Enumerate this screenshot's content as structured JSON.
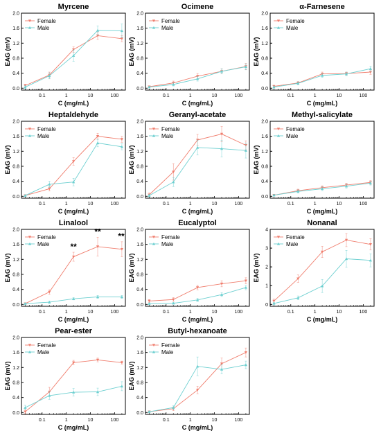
{
  "colors": {
    "female": "#f07e6e",
    "male": "#6ccfd0",
    "axis": "#000000"
  },
  "chart_data": [
    {
      "type": "line",
      "title": "Myrcene",
      "xlabel": "C (mg/mL)",
      "ylabel": "EAG (mV)",
      "xscale": "log",
      "ylim": [
        -0.05,
        2.0
      ],
      "y_ticks": [
        "0.0",
        "0.4",
        "0.8",
        "1.2",
        "1.6",
        "2.0"
      ],
      "legend": "top-left",
      "x": [
        0.02,
        0.2,
        2,
        20,
        200
      ],
      "series": [
        {
          "name": "Female",
          "marker": "down-triangle",
          "values": [
            0.07,
            0.35,
            1.03,
            1.4,
            1.32
          ],
          "errors": [
            0.04,
            0.08,
            0.07,
            0.1,
            0.08
          ]
        },
        {
          "name": "Male",
          "marker": "up-triangle",
          "values": [
            0.03,
            0.33,
            0.87,
            1.54,
            1.53
          ],
          "errors": [
            0.04,
            0.08,
            0.15,
            0.12,
            0.18
          ]
        }
      ]
    },
    {
      "type": "line",
      "title": "Ocimene",
      "xlabel": "C (mg/mL)",
      "ylabel": "EAG (mV)",
      "xscale": "log",
      "ylim": [
        -0.05,
        2.0
      ],
      "y_ticks": [
        "0.0",
        "0.4",
        "0.8",
        "1.2",
        "1.6",
        "2.0"
      ],
      "legend": "top-left",
      "x": [
        0.02,
        0.2,
        2,
        20,
        200
      ],
      "series": [
        {
          "name": "Female",
          "marker": "down-triangle",
          "values": [
            0.04,
            0.14,
            0.32,
            0.45,
            0.58
          ],
          "errors": [
            0.02,
            0.05,
            0.07,
            0.07,
            0.08
          ]
        },
        {
          "name": "Male",
          "marker": "up-triangle",
          "values": [
            0.03,
            0.1,
            0.25,
            0.45,
            0.57
          ],
          "errors": [
            0.02,
            0.04,
            0.06,
            0.07,
            0.08
          ]
        }
      ]
    },
    {
      "type": "line",
      "title": "α-Farnesene",
      "xlabel": "C (mg/mL)",
      "ylabel": "EAG (mV)",
      "xscale": "log",
      "ylim": [
        -0.05,
        2.0
      ],
      "y_ticks": [
        "0.0",
        "0.4",
        "0.8",
        "1.2",
        "1.6",
        "2.0"
      ],
      "legend": "top-left",
      "x": [
        0.02,
        0.2,
        2,
        20,
        200
      ],
      "series": [
        {
          "name": "Female",
          "marker": "down-triangle",
          "values": [
            0.05,
            0.14,
            0.38,
            0.39,
            0.43
          ],
          "errors": [
            0.03,
            0.04,
            0.05,
            0.04,
            0.06
          ]
        },
        {
          "name": "Male",
          "marker": "up-triangle",
          "values": [
            0.03,
            0.13,
            0.34,
            0.38,
            0.52
          ],
          "errors": [
            0.03,
            0.04,
            0.05,
            0.05,
            0.07
          ]
        }
      ]
    },
    {
      "type": "line",
      "title": "Heptaldehyde",
      "xlabel": "C (mg/mL)",
      "ylabel": "EAG (mV)",
      "xscale": "log",
      "ylim": [
        -0.05,
        2.0
      ],
      "y_ticks": [
        "0.0",
        "0.4",
        "0.8",
        "1.2",
        "1.6",
        "2.0"
      ],
      "legend": "top-left",
      "x": [
        0.02,
        0.2,
        2,
        20,
        200
      ],
      "series": [
        {
          "name": "Female",
          "marker": "down-triangle",
          "values": [
            0.02,
            0.2,
            0.93,
            1.6,
            1.52
          ],
          "errors": [
            0.02,
            0.06,
            0.1,
            0.08,
            0.08
          ]
        },
        {
          "name": "Male",
          "marker": "up-triangle",
          "values": [
            0.02,
            0.32,
            0.38,
            1.42,
            1.32
          ],
          "errors": [
            0.02,
            0.08,
            0.1,
            0.1,
            0.08
          ]
        }
      ]
    },
    {
      "type": "line",
      "title": "Geranyl-acetate",
      "xlabel": "C (mg/mL)",
      "ylabel": "EAG (mV)",
      "xscale": "log",
      "ylim": [
        -0.05,
        2.0
      ],
      "y_ticks": [
        "0.0",
        "0.4",
        "0.8",
        "1.2",
        "1.6",
        "2.0"
      ],
      "legend": "top-left",
      "x": [
        0.02,
        0.2,
        2,
        20,
        200
      ],
      "series": [
        {
          "name": "Female",
          "marker": "down-triangle",
          "values": [
            0.04,
            0.65,
            1.5,
            1.66,
            1.36
          ],
          "errors": [
            0.05,
            0.22,
            0.15,
            0.2,
            0.12
          ]
        },
        {
          "name": "Male",
          "marker": "up-triangle",
          "values": [
            0.02,
            0.38,
            1.3,
            1.27,
            1.22
          ],
          "errors": [
            0.03,
            0.12,
            0.2,
            0.22,
            0.2
          ]
        }
      ]
    },
    {
      "type": "line",
      "title": "Methyl-salicylate",
      "xlabel": "C (mg/mL)",
      "ylabel": "EAG (mV)",
      "xscale": "log",
      "ylim": [
        -0.05,
        2.0
      ],
      "y_ticks": [
        "0.0",
        "0.4",
        "0.8",
        "1.2",
        "1.6",
        "2.0"
      ],
      "legend": "top-left",
      "x": [
        0.02,
        0.2,
        2,
        20,
        200
      ],
      "series": [
        {
          "name": "Female",
          "marker": "down-triangle",
          "values": [
            0.03,
            0.15,
            0.23,
            0.3,
            0.37
          ],
          "errors": [
            0.02,
            0.04,
            0.05,
            0.05,
            0.05
          ]
        },
        {
          "name": "Male",
          "marker": "up-triangle",
          "values": [
            0.03,
            0.13,
            0.2,
            0.27,
            0.35
          ],
          "errors": [
            0.02,
            0.04,
            0.05,
            0.05,
            0.05
          ]
        }
      ]
    },
    {
      "type": "line",
      "title": "Linalool",
      "xlabel": "C (mg/mL)",
      "ylabel": "EAG (mV)",
      "xscale": "log",
      "ylim": [
        -0.05,
        2.0
      ],
      "y_ticks": [
        "0.0",
        "0.4",
        "0.8",
        "1.2",
        "1.6",
        "2.0"
      ],
      "legend": "top-left",
      "x": [
        0.02,
        0.2,
        2,
        20,
        200
      ],
      "series": [
        {
          "name": "Female",
          "marker": "down-triangle",
          "values": [
            0.02,
            0.33,
            1.27,
            1.54,
            1.47
          ],
          "errors": [
            0.02,
            0.06,
            0.12,
            0.25,
            0.2
          ]
        },
        {
          "name": "Male",
          "marker": "up-triangle",
          "values": [
            0.02,
            0.06,
            0.15,
            0.2,
            0.2
          ],
          "errors": [
            0.02,
            0.03,
            0.03,
            0.04,
            0.04
          ]
        }
      ],
      "annotations": [
        {
          "x": 2,
          "text": "**"
        },
        {
          "x": 20,
          "text": "**"
        },
        {
          "x": 200,
          "text": "**"
        }
      ]
    },
    {
      "type": "line",
      "title": "Eucalyptol",
      "xlabel": "C (mg/mL)",
      "ylabel": "EAG (mV)",
      "xscale": "log",
      "ylim": [
        -0.05,
        2.0
      ],
      "y_ticks": [
        "0.0",
        "0.4",
        "0.8",
        "1.2",
        "1.6",
        "2.0"
      ],
      "legend": "top-left",
      "x": [
        0.02,
        0.2,
        2,
        20,
        200
      ],
      "series": [
        {
          "name": "Female",
          "marker": "down-triangle",
          "values": [
            0.09,
            0.13,
            0.45,
            0.55,
            0.63
          ],
          "errors": [
            0.04,
            0.05,
            0.06,
            0.08,
            0.08
          ]
        },
        {
          "name": "Male",
          "marker": "up-triangle",
          "values": [
            0.02,
            0.03,
            0.12,
            0.26,
            0.45
          ],
          "errors": [
            0.02,
            0.02,
            0.04,
            0.05,
            0.06
          ]
        }
      ]
    },
    {
      "type": "line",
      "title": "Nonanal",
      "xlabel": "C (mg/mL)",
      "ylabel": "EAG (mV)",
      "xscale": "log",
      "ylim": [
        -0.1,
        4.0
      ],
      "y_ticks": [
        "0",
        "1",
        "2",
        "3",
        "4"
      ],
      "legend": "top-left",
      "x": [
        0.02,
        0.2,
        2,
        20,
        200
      ],
      "series": [
        {
          "name": "Female",
          "marker": "down-triangle",
          "values": [
            0.18,
            1.37,
            2.8,
            3.43,
            3.2
          ],
          "errors": [
            0.1,
            0.2,
            0.3,
            0.35,
            0.3
          ]
        },
        {
          "name": "Male",
          "marker": "up-triangle",
          "values": [
            0.05,
            0.35,
            0.98,
            2.43,
            2.35
          ],
          "errors": [
            0.05,
            0.1,
            0.35,
            0.45,
            0.35
          ]
        }
      ]
    },
    {
      "type": "line",
      "title": "Pear-ester",
      "xlabel": "C (mg/mL)",
      "ylabel": "EAG (mV)",
      "xscale": "log",
      "ylim": [
        -0.05,
        2.0
      ],
      "y_ticks": [
        "0.0",
        "0.4",
        "0.8",
        "1.2",
        "1.6",
        "2.0"
      ],
      "legend": "top-left",
      "x": [
        0.02,
        0.2,
        2,
        20,
        200
      ],
      "series": [
        {
          "name": "Female",
          "marker": "down-triangle",
          "values": [
            0.02,
            0.55,
            1.33,
            1.4,
            1.33
          ],
          "errors": [
            0.05,
            0.12,
            0.06,
            0.05,
            0.04
          ]
        },
        {
          "name": "Male",
          "marker": "up-triangle",
          "values": [
            0.13,
            0.45,
            0.54,
            0.55,
            0.7
          ],
          "errors": [
            0.06,
            0.1,
            0.1,
            0.1,
            0.12
          ]
        }
      ]
    },
    {
      "type": "line",
      "title": "Butyl-hexanoate",
      "xlabel": "C (mg/mL)",
      "ylabel": "EAG (mV)",
      "xscale": "log",
      "ylim": [
        -0.05,
        2.0
      ],
      "y_ticks": [
        "0.0",
        "0.4",
        "0.8",
        "1.2",
        "1.6",
        "2.0"
      ],
      "legend": "top-left",
      "x": [
        0.02,
        0.2,
        2,
        20,
        200
      ],
      "series": [
        {
          "name": "Female",
          "marker": "down-triangle",
          "values": [
            0.02,
            0.1,
            0.6,
            1.3,
            1.6
          ],
          "errors": [
            0.02,
            0.05,
            0.1,
            0.15,
            0.12
          ]
        },
        {
          "name": "Male",
          "marker": "up-triangle",
          "values": [
            0.02,
            0.13,
            1.23,
            1.15,
            1.27
          ],
          "errors": [
            0.02,
            0.05,
            0.25,
            0.12,
            0.1
          ]
        }
      ]
    }
  ]
}
